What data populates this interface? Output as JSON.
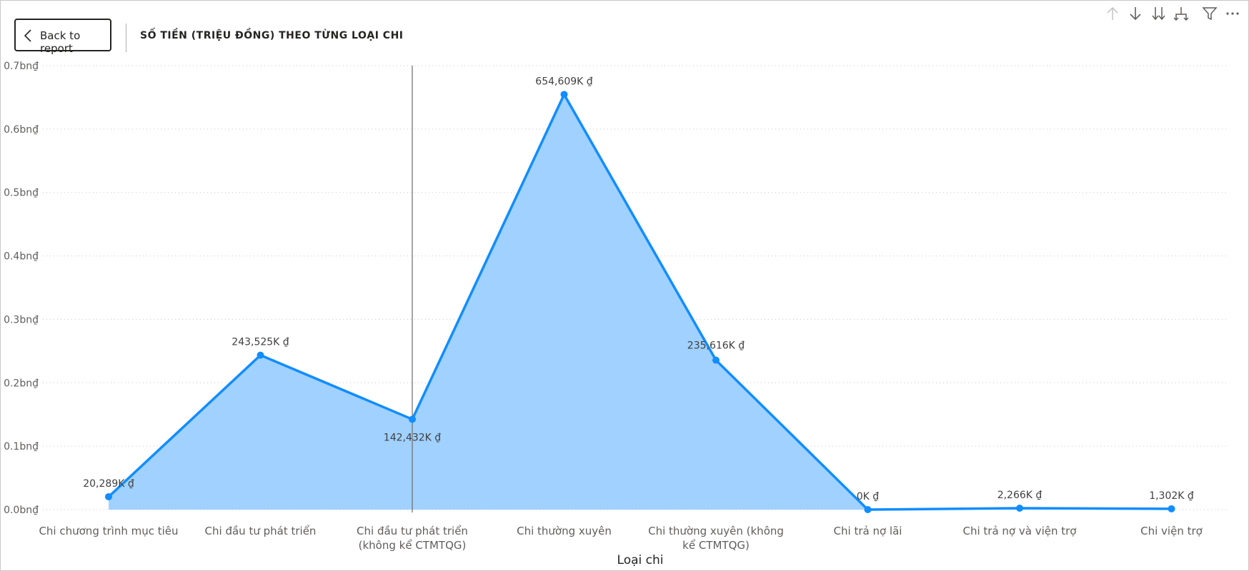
{
  "header": {
    "back_label": "Back to report",
    "title": "SỐ TIỀN (TRIỆU ĐỒNG) THEO TỪNG LOẠI CHI"
  },
  "toolbar": {
    "icons": [
      "arrow-up-icon",
      "arrow-down-icon",
      "double-arrow-down-icon",
      "expand-hierarchy-icon",
      "filter-icon",
      "more-options-icon"
    ],
    "more_label": "···"
  },
  "colors": {
    "line": "#118dff",
    "area": "#a0d1ff",
    "grid": "#c8c6c4",
    "crosshair": "#6b6b6b"
  },
  "chart_data": {
    "type": "area",
    "xlabel": "Loại chi",
    "ylabel": "",
    "ylim": [
      0,
      0.7
    ],
    "y_unit": "bn₫",
    "grid": true,
    "yticks": [
      "0.0bn₫",
      "0.1bn₫",
      "0.2bn₫",
      "0.3bn₫",
      "0.4bn₫",
      "0.5bn₫",
      "0.6bn₫",
      "0.7bn₫"
    ],
    "categories": [
      [
        "Chi chương trình mục tiêu"
      ],
      [
        "Chi đầu tư phát triển"
      ],
      [
        "Chi đầu tư phát triển",
        "(không kể CTMTQG)"
      ],
      [
        "Chi thường xuyên"
      ],
      [
        "Chi thường xuyên (không",
        "kể CTMTQG)"
      ],
      [
        "Chi trả nợ lãi"
      ],
      [
        "Chi trả nợ và viện trợ"
      ],
      [
        "Chi viện trợ"
      ]
    ],
    "values": [
      0.020289,
      0.243525,
      0.142432,
      0.654609,
      0.235616,
      0.0,
      0.002266,
      0.001302
    ],
    "labels": [
      "20,289K ₫",
      "243,525K ₫",
      "142,432K ₫",
      "654,609K ₫",
      "235,616K ₫",
      "0K ₫",
      "2,266K ₫",
      "1,302K ₫"
    ],
    "highlighted_category": 2
  }
}
